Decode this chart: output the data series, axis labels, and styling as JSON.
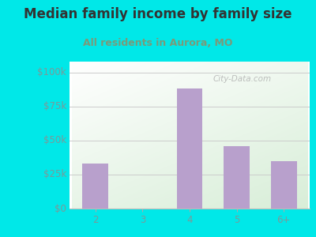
{
  "title": "Median family income by family size",
  "subtitle": "All residents in Aurora, MO",
  "categories": [
    "2",
    "3",
    "4",
    "5",
    "6+"
  ],
  "values": [
    33000,
    0,
    88000,
    46000,
    35000
  ],
  "bar_color": "#b8a0cc",
  "background_outer": "#00e8e8",
  "background_inner_top_left": "#d8eed8",
  "background_inner_bottom_right": "#ffffff",
  "title_color": "#333333",
  "subtitle_color": "#7a9a7a",
  "tick_color": "#7a9a9a",
  "ytick_labels": [
    "$0",
    "$25k",
    "$50k",
    "$75k",
    "$100k"
  ],
  "ytick_values": [
    0,
    25000,
    50000,
    75000,
    100000
  ],
  "ylim": [
    0,
    108000
  ],
  "watermark": "City-Data.com",
  "title_fontsize": 12,
  "subtitle_fontsize": 9,
  "tick_fontsize": 8.5
}
